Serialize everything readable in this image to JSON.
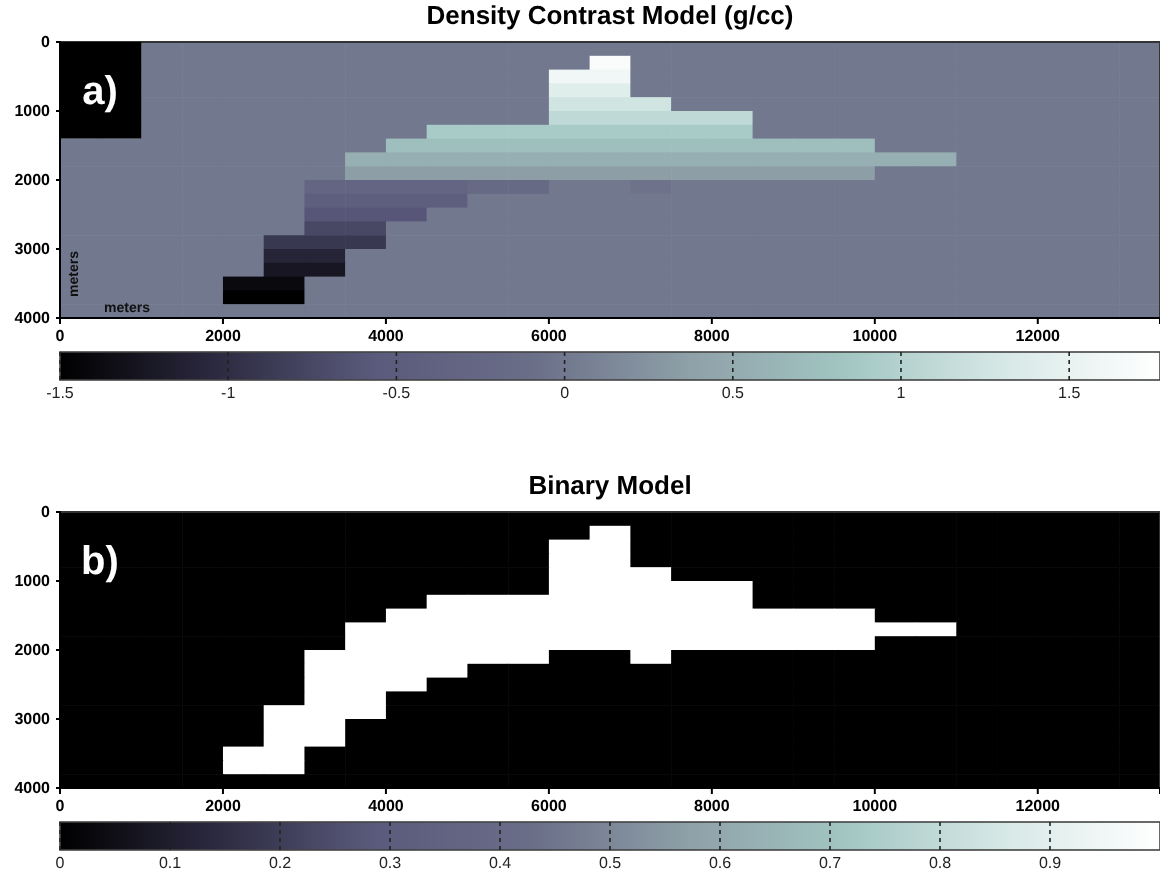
{
  "chart_data": [
    {
      "type": "heatmap",
      "title": "Density Contrast Model (g/cc)",
      "xlabel": "meters",
      "ylabel": "meters",
      "annotations": [
        "a)"
      ],
      "x": [
        250,
        750,
        1250,
        1750,
        2250,
        2750,
        3250,
        3750,
        4250,
        4750,
        5250,
        5750,
        6250,
        6750,
        7250,
        7750,
        8250,
        8750,
        9250,
        9750,
        10250,
        10750,
        11250,
        11750,
        12250,
        12750,
        13250
      ],
      "y": [
        100,
        300,
        500,
        700,
        900,
        1100,
        1300,
        1500,
        1700,
        1900,
        2100,
        2300,
        2500,
        2700,
        2900,
        3100,
        3300,
        3500,
        3700,
        3900
      ],
      "xlim": [
        0,
        13500
      ],
      "ylim": [
        4000,
        0
      ],
      "xticks": [
        0,
        2000,
        4000,
        6000,
        8000,
        10000,
        12000
      ],
      "yticks": [
        0,
        1000,
        2000,
        3000,
        4000
      ],
      "clim": [
        -1.5,
        1.77
      ],
      "cticks": [
        -1.5,
        -1,
        -0.5,
        0,
        0.5,
        1,
        1.5
      ],
      "cells": [
        [
          null,
          null,
          0,
          0,
          0,
          0,
          0,
          0,
          0,
          0,
          0,
          0,
          0,
          0,
          0,
          0,
          0,
          0,
          0,
          0,
          0,
          0,
          0,
          0,
          0,
          0,
          0
        ],
        [
          null,
          null,
          0,
          0,
          0,
          0,
          0,
          0,
          0,
          0,
          0,
          0,
          0,
          1.7,
          0,
          0,
          0,
          0,
          0,
          0,
          0,
          0,
          0,
          0,
          0,
          0,
          0
        ],
        [
          null,
          null,
          0,
          0,
          0,
          0,
          0,
          0,
          0,
          0,
          0,
          0,
          1.6,
          1.6,
          0,
          0,
          0,
          0,
          0,
          0,
          0,
          0,
          0,
          0,
          0,
          0,
          0
        ],
        [
          null,
          null,
          0,
          0,
          0,
          0,
          0,
          0,
          0,
          0,
          0,
          0,
          1.4,
          1.4,
          0,
          0,
          0,
          0,
          0,
          0,
          0,
          0,
          0,
          0,
          0,
          0,
          0
        ],
        [
          null,
          null,
          0,
          0,
          0,
          0,
          0,
          0,
          0,
          0,
          0,
          0,
          1.25,
          1.25,
          1.25,
          0,
          0,
          0,
          0,
          0,
          0,
          0,
          0,
          0,
          0,
          0,
          0
        ],
        [
          null,
          null,
          0,
          0,
          0,
          0,
          0,
          0,
          0,
          0,
          0,
          0,
          1.1,
          1.1,
          1.1,
          1.1,
          1.1,
          0,
          0,
          0,
          0,
          0,
          0,
          0,
          0,
          0,
          0
        ],
        [
          null,
          null,
          0,
          0,
          0,
          0,
          0,
          0,
          0,
          0.9,
          0.9,
          0.9,
          0.9,
          0.9,
          0.9,
          0.9,
          0.9,
          0,
          0,
          0,
          0,
          0,
          0,
          0,
          0,
          0,
          0
        ],
        [
          0,
          0,
          0,
          0,
          0,
          0,
          0,
          0,
          0.75,
          0.75,
          0.75,
          0.75,
          0.75,
          0.75,
          0.75,
          0.75,
          0.75,
          0.75,
          0.75,
          0.75,
          0,
          0,
          0,
          0,
          0,
          0,
          0
        ],
        [
          0,
          0,
          0,
          0,
          0,
          0,
          0,
          0.55,
          0.55,
          0.55,
          0.55,
          0.55,
          0.55,
          0.55,
          0.55,
          0.55,
          0.55,
          0.55,
          0.55,
          0.55,
          0.55,
          0.55,
          0,
          0,
          0,
          0,
          0
        ],
        [
          0,
          0,
          0,
          0,
          0,
          0,
          0,
          0.35,
          0.35,
          0.35,
          0.35,
          0.35,
          0.35,
          0.35,
          0.35,
          0.35,
          0.35,
          0.35,
          0.35,
          0.35,
          0,
          0,
          0,
          0,
          0,
          0,
          0
        ],
        [
          0,
          0,
          0,
          0,
          0,
          0,
          -0.3,
          -0.3,
          -0.3,
          -0.3,
          -0.2,
          -0.2,
          0,
          0,
          -0.05,
          0,
          0,
          0,
          0,
          0,
          0,
          0,
          0,
          0,
          0,
          0,
          0
        ],
        [
          0,
          0,
          0,
          0,
          0,
          0,
          -0.45,
          -0.45,
          -0.45,
          -0.45,
          0,
          0,
          0,
          0,
          0,
          0,
          0,
          0,
          0,
          0,
          0,
          0,
          0,
          0,
          0,
          0,
          0
        ],
        [
          0,
          0,
          0,
          0,
          0,
          0,
          -0.6,
          -0.6,
          -0.6,
          0,
          0,
          0,
          0,
          0,
          0,
          0,
          0,
          0,
          0,
          0,
          0,
          0,
          0,
          0,
          0,
          0,
          0
        ],
        [
          0,
          0,
          0,
          0,
          0,
          0,
          -0.75,
          -0.75,
          0,
          0,
          0,
          0,
          0,
          0,
          0,
          0,
          0,
          0,
          0,
          0,
          0,
          0,
          0,
          0,
          0,
          0,
          0
        ],
        [
          0,
          0,
          0,
          0,
          0,
          -0.9,
          -0.9,
          -0.9,
          0,
          0,
          0,
          0,
          0,
          0,
          0,
          0,
          0,
          0,
          0,
          0,
          0,
          0,
          0,
          0,
          0,
          0,
          0
        ],
        [
          0,
          0,
          0,
          0,
          0,
          -1.1,
          -1.1,
          0,
          0,
          0,
          0,
          0,
          0,
          0,
          0,
          0,
          0,
          0,
          0,
          0,
          0,
          0,
          0,
          0,
          0,
          0,
          0
        ],
        [
          0,
          0,
          0,
          0,
          0,
          -1.25,
          -1.25,
          0,
          0,
          0,
          0,
          0,
          0,
          0,
          0,
          0,
          0,
          0,
          0,
          0,
          0,
          0,
          0,
          0,
          0,
          0,
          0
        ],
        [
          0,
          0,
          0,
          0,
          -1.4,
          -1.4,
          0,
          0,
          0,
          0,
          0,
          0,
          0,
          0,
          0,
          0,
          0,
          0,
          0,
          0,
          0,
          0,
          0,
          0,
          0,
          0,
          0
        ],
        [
          0,
          0,
          0,
          0,
          -1.5,
          -1.5,
          0,
          0,
          0,
          0,
          0,
          0,
          0,
          0,
          0,
          0,
          0,
          0,
          0,
          0,
          0,
          0,
          0,
          0,
          0,
          0,
          0
        ],
        [
          0,
          0,
          0,
          0,
          0,
          0,
          0,
          0,
          0,
          0,
          0,
          0,
          0,
          0,
          0,
          0,
          0,
          0,
          0,
          0,
          0,
          0,
          0,
          0,
          0,
          0,
          0
        ]
      ]
    },
    {
      "type": "heatmap",
      "title": "Binary Model",
      "annotations": [
        "b)"
      ],
      "x": [
        250,
        750,
        1250,
        1750,
        2250,
        2750,
        3250,
        3750,
        4250,
        4750,
        5250,
        5750,
        6250,
        6750,
        7250,
        7750,
        8250,
        8750,
        9250,
        9750,
        10250,
        10750,
        11250,
        11750,
        12250,
        12750,
        13250
      ],
      "y": [
        100,
        300,
        500,
        700,
        900,
        1100,
        1300,
        1500,
        1700,
        1900,
        2100,
        2300,
        2500,
        2700,
        2900,
        3100,
        3300,
        3500,
        3700,
        3900
      ],
      "xlim": [
        0,
        13500
      ],
      "ylim": [
        4000,
        0
      ],
      "xticks": [
        0,
        2000,
        4000,
        6000,
        8000,
        10000,
        12000
      ],
      "yticks": [
        0,
        1000,
        2000,
        3000,
        4000
      ],
      "clim": [
        0,
        1
      ],
      "cticks": [
        0,
        0.1,
        0.2,
        0.3,
        0.4,
        0.5,
        0.6,
        0.7,
        0.8,
        0.9
      ],
      "cells": [
        [
          0,
          0,
          0,
          0,
          0,
          0,
          0,
          0,
          0,
          0,
          0,
          0,
          0,
          0,
          0,
          0,
          0,
          0,
          0,
          0,
          0,
          0,
          0,
          0,
          0,
          0,
          0
        ],
        [
          0,
          0,
          0,
          0,
          0,
          0,
          0,
          0,
          0,
          0,
          0,
          0,
          0,
          1,
          0,
          0,
          0,
          0,
          0,
          0,
          0,
          0,
          0,
          0,
          0,
          0,
          0
        ],
        [
          0,
          0,
          0,
          0,
          0,
          0,
          0,
          0,
          0,
          0,
          0,
          0,
          1,
          1,
          0,
          0,
          0,
          0,
          0,
          0,
          0,
          0,
          0,
          0,
          0,
          0,
          0
        ],
        [
          0,
          0,
          0,
          0,
          0,
          0,
          0,
          0,
          0,
          0,
          0,
          0,
          1,
          1,
          0,
          0,
          0,
          0,
          0,
          0,
          0,
          0,
          0,
          0,
          0,
          0,
          0
        ],
        [
          0,
          0,
          0,
          0,
          0,
          0,
          0,
          0,
          0,
          0,
          0,
          0,
          1,
          1,
          1,
          0,
          0,
          0,
          0,
          0,
          0,
          0,
          0,
          0,
          0,
          0,
          0
        ],
        [
          0,
          0,
          0,
          0,
          0,
          0,
          0,
          0,
          0,
          0,
          0,
          0,
          1,
          1,
          1,
          1,
          1,
          0,
          0,
          0,
          0,
          0,
          0,
          0,
          0,
          0,
          0
        ],
        [
          0,
          0,
          0,
          0,
          0,
          0,
          0,
          0,
          0,
          1,
          1,
          1,
          1,
          1,
          1,
          1,
          1,
          0,
          0,
          0,
          0,
          0,
          0,
          0,
          0,
          0,
          0
        ],
        [
          0,
          0,
          0,
          0,
          0,
          0,
          0,
          0,
          1,
          1,
          1,
          1,
          1,
          1,
          1,
          1,
          1,
          1,
          1,
          1,
          0,
          0,
          0,
          0,
          0,
          0,
          0
        ],
        [
          0,
          0,
          0,
          0,
          0,
          0,
          0,
          1,
          1,
          1,
          1,
          1,
          1,
          1,
          1,
          1,
          1,
          1,
          1,
          1,
          1,
          1,
          0,
          0,
          0,
          0,
          0
        ],
        [
          0,
          0,
          0,
          0,
          0,
          0,
          0,
          1,
          1,
          1,
          1,
          1,
          1,
          1,
          1,
          1,
          1,
          1,
          1,
          1,
          0,
          0,
          0,
          0,
          0,
          0,
          0
        ],
        [
          0,
          0,
          0,
          0,
          0,
          0,
          1,
          1,
          1,
          1,
          1,
          1,
          0,
          0,
          1,
          0,
          0,
          0,
          0,
          0,
          0,
          0,
          0,
          0,
          0,
          0,
          0
        ],
        [
          0,
          0,
          0,
          0,
          0,
          0,
          1,
          1,
          1,
          1,
          0,
          0,
          0,
          0,
          0,
          0,
          0,
          0,
          0,
          0,
          0,
          0,
          0,
          0,
          0,
          0,
          0
        ],
        [
          0,
          0,
          0,
          0,
          0,
          0,
          1,
          1,
          1,
          0,
          0,
          0,
          0,
          0,
          0,
          0,
          0,
          0,
          0,
          0,
          0,
          0,
          0,
          0,
          0,
          0,
          0
        ],
        [
          0,
          0,
          0,
          0,
          0,
          0,
          1,
          1,
          0,
          0,
          0,
          0,
          0,
          0,
          0,
          0,
          0,
          0,
          0,
          0,
          0,
          0,
          0,
          0,
          0,
          0,
          0
        ],
        [
          0,
          0,
          0,
          0,
          0,
          1,
          1,
          1,
          0,
          0,
          0,
          0,
          0,
          0,
          0,
          0,
          0,
          0,
          0,
          0,
          0,
          0,
          0,
          0,
          0,
          0,
          0
        ],
        [
          0,
          0,
          0,
          0,
          0,
          1,
          1,
          0,
          0,
          0,
          0,
          0,
          0,
          0,
          0,
          0,
          0,
          0,
          0,
          0,
          0,
          0,
          0,
          0,
          0,
          0,
          0
        ],
        [
          0,
          0,
          0,
          0,
          0,
          1,
          1,
          0,
          0,
          0,
          0,
          0,
          0,
          0,
          0,
          0,
          0,
          0,
          0,
          0,
          0,
          0,
          0,
          0,
          0,
          0,
          0
        ],
        [
          0,
          0,
          0,
          0,
          1,
          1,
          0,
          0,
          0,
          0,
          0,
          0,
          0,
          0,
          0,
          0,
          0,
          0,
          0,
          0,
          0,
          0,
          0,
          0,
          0,
          0,
          0
        ],
        [
          0,
          0,
          0,
          0,
          1,
          1,
          0,
          0,
          0,
          0,
          0,
          0,
          0,
          0,
          0,
          0,
          0,
          0,
          0,
          0,
          0,
          0,
          0,
          0,
          0,
          0,
          0
        ],
        [
          0,
          0,
          0,
          0,
          0,
          0,
          0,
          0,
          0,
          0,
          0,
          0,
          0,
          0,
          0,
          0,
          0,
          0,
          0,
          0,
          0,
          0,
          0,
          0,
          0,
          0,
          0
        ]
      ]
    }
  ]
}
